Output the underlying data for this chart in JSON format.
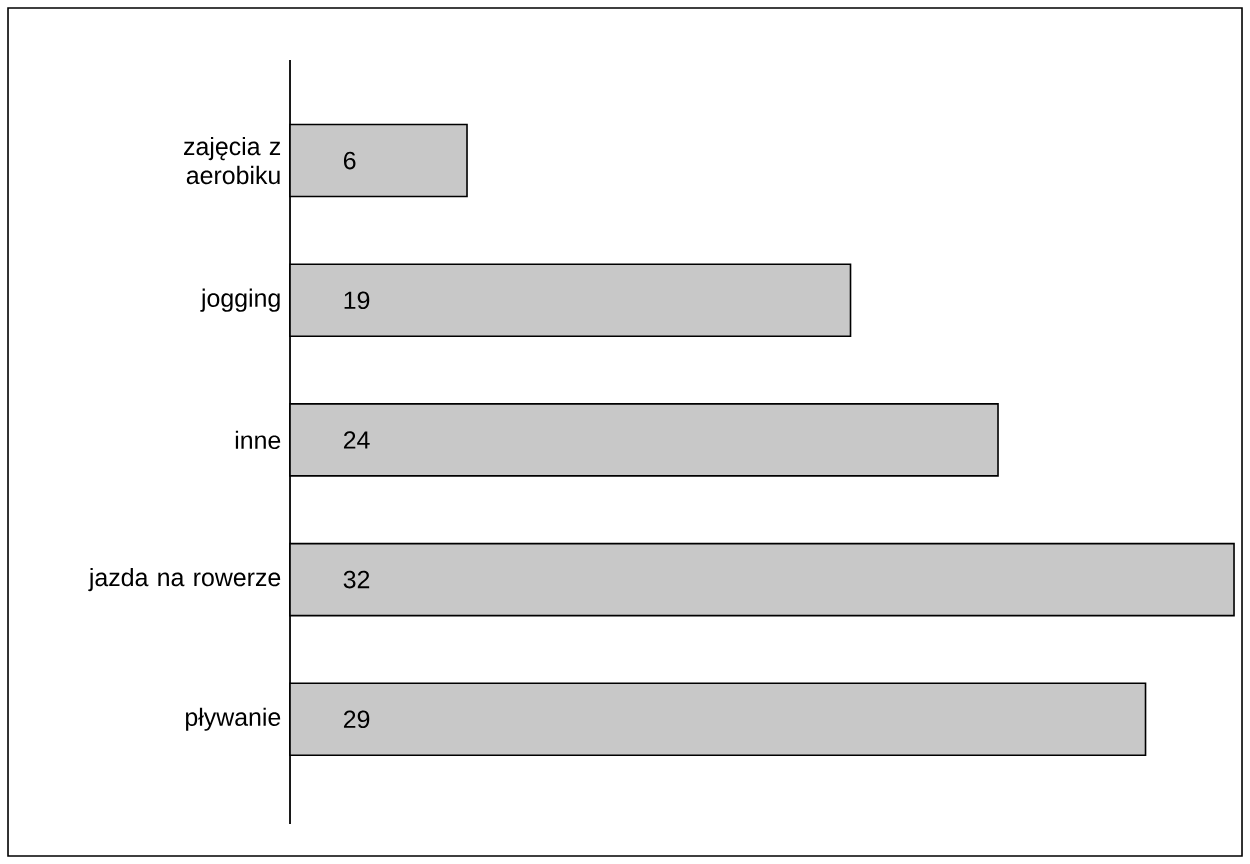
{
  "chart_data": {
    "type": "bar",
    "orientation": "horizontal",
    "categories": [
      "zajęcia z aerobiku",
      "jogging",
      "inne",
      "jazda na rowerze",
      "pływanie"
    ],
    "values": [
      6,
      19,
      24,
      32,
      29
    ],
    "color": "#c8c8c8",
    "data_labels": true
  }
}
